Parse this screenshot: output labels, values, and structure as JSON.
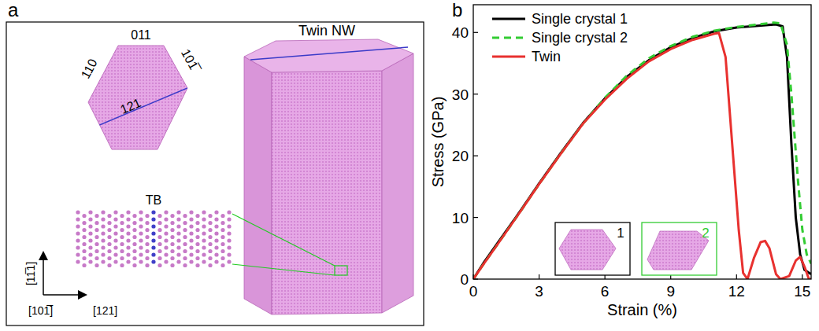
{
  "figure": {
    "panel_labels": [
      "a",
      "b"
    ]
  },
  "diagram": {
    "cross_section_labels": [
      "011",
      "110",
      "101̅",
      "121"
    ],
    "nw_label": "Twin NW",
    "tb_label": "TB",
    "axis_labels": [
      "[11̅1]",
      "[101̅]",
      "[121]"
    ]
  },
  "chart_data": {
    "type": "line",
    "x_label": "Strain (%)",
    "y_label": "Stress (GPa)",
    "xlim": [
      0,
      15.4
    ],
    "ylim": [
      0,
      44.5
    ],
    "xticks": [
      0,
      3,
      6,
      9,
      12,
      15
    ],
    "yticks": [
      0,
      10,
      20,
      30,
      40
    ],
    "legend": "top-left",
    "grid": false,
    "annotations": [
      "1",
      "2"
    ],
    "series": [
      {
        "name": "Single crystal 1",
        "color": "#000000",
        "line_style": "solid",
        "x": [
          0,
          0.5,
          1,
          2,
          3,
          4,
          5,
          6,
          7,
          8,
          9,
          10,
          11,
          12,
          13,
          13.8,
          14.1,
          14.3,
          14.5,
          14.7,
          14.9,
          15.1,
          15.4
        ],
        "values": [
          0,
          2.8,
          5.3,
          10.3,
          15.5,
          20.5,
          25.3,
          29.3,
          32.8,
          35.5,
          37.6,
          39.1,
          40.2,
          40.8,
          41.1,
          41.3,
          41.0,
          36,
          22,
          10,
          4,
          1.5,
          0.8
        ]
      },
      {
        "name": "Single crystal 2",
        "color": "#33cc33",
        "line_style": "dashed",
        "x": [
          0,
          0.5,
          1,
          2,
          3,
          4,
          5,
          6,
          7,
          8,
          9,
          10,
          11,
          12,
          13,
          13.7,
          14.0,
          14.3,
          14.5,
          14.8,
          15.0,
          15.2,
          15.4
        ],
        "values": [
          0,
          2.6,
          5.1,
          10.2,
          15.4,
          20.4,
          25.2,
          29.4,
          33,
          35.8,
          37.8,
          39.3,
          40.3,
          40.9,
          41.3,
          41.6,
          41.5,
          38,
          30,
          16,
          8,
          4,
          2.5
        ]
      },
      {
        "name": "Twin",
        "color": "#e8312f",
        "line_style": "solid",
        "x": [
          0,
          0.5,
          1,
          2,
          3,
          4,
          5,
          6,
          7,
          8,
          9,
          10,
          10.5,
          11,
          11.2,
          11.5,
          11.8,
          12.1,
          12.3,
          12.5,
          12.8,
          13.1,
          13.3,
          13.5,
          13.8,
          14.0,
          14.4,
          14.7,
          14.9,
          15.1,
          15.3,
          15.4
        ],
        "values": [
          0,
          2.6,
          5.1,
          10.2,
          15.4,
          20.4,
          25.2,
          29.1,
          32.5,
          35.3,
          37.3,
          38.8,
          39.3,
          39.8,
          39.9,
          36,
          22,
          8,
          1,
          0,
          3.5,
          6,
          6.2,
          5,
          0.8,
          0,
          0.5,
          3,
          3.6,
          2,
          0,
          0
        ]
      }
    ]
  }
}
